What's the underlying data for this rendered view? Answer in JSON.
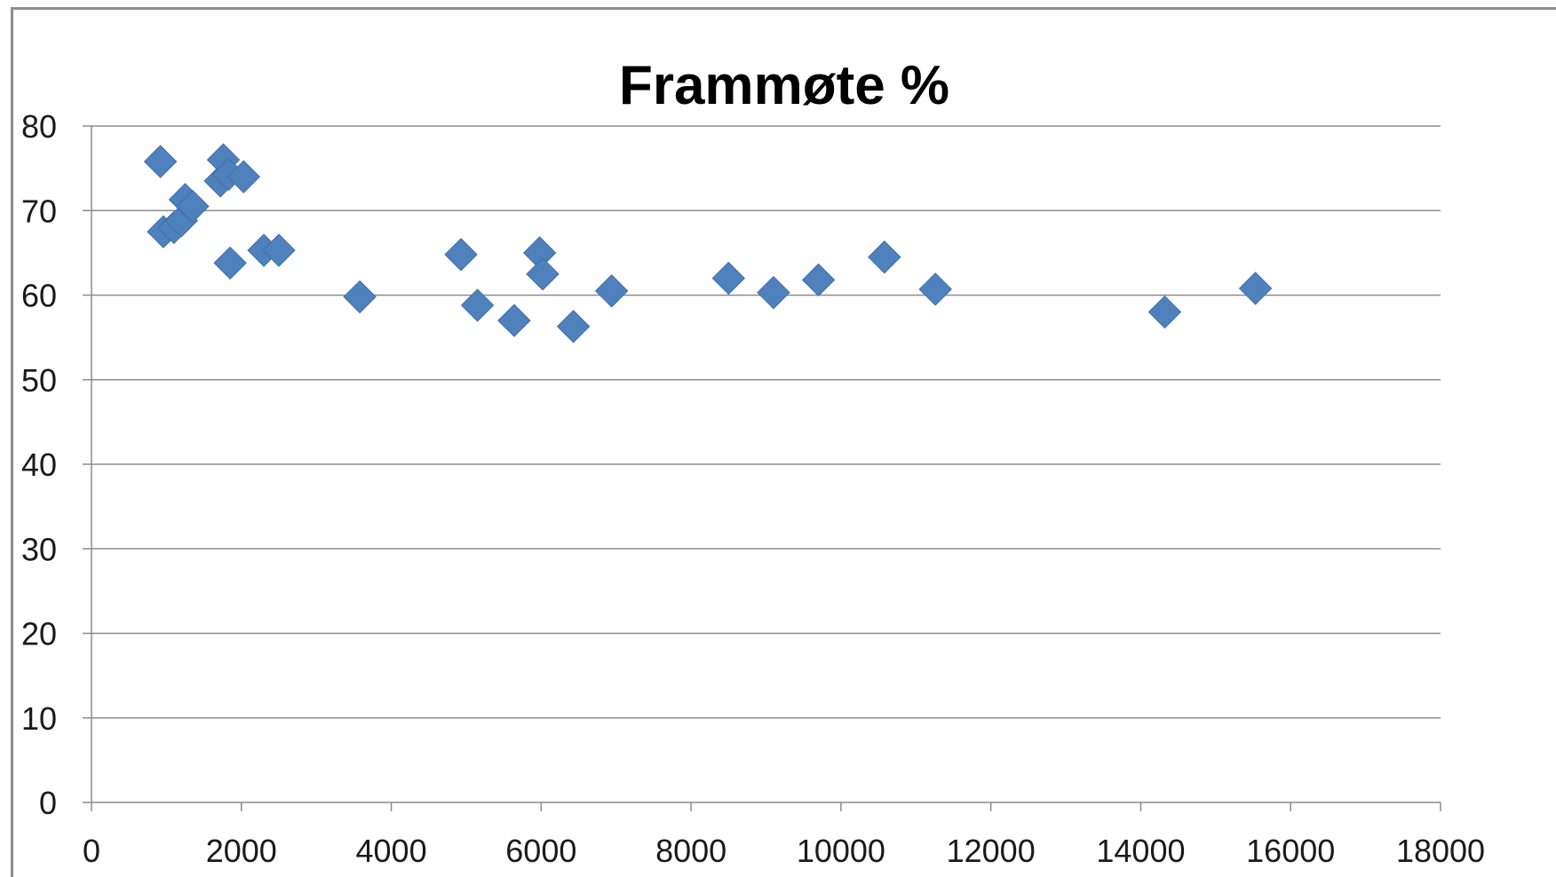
{
  "chart_data": {
    "type": "scatter",
    "title": "Frammøte %",
    "xlabel": "",
    "ylabel": "",
    "xlim": [
      0,
      18000
    ],
    "ylim": [
      0,
      80
    ],
    "x_ticks": [
      "0",
      "2000",
      "4000",
      "6000",
      "8000",
      "10000",
      "12000",
      "14000",
      "16000",
      "18000"
    ],
    "y_ticks": [
      "0",
      "10",
      "20",
      "30",
      "40",
      "50",
      "60",
      "70",
      "80"
    ],
    "grid": "horizontal",
    "legend": "none",
    "marker": "diamond",
    "color": "#4f81bd",
    "points": [
      {
        "x": 920,
        "y": 75.8
      },
      {
        "x": 960,
        "y": 67.5
      },
      {
        "x": 1100,
        "y": 68.0
      },
      {
        "x": 1200,
        "y": 68.8
      },
      {
        "x": 1250,
        "y": 71.3
      },
      {
        "x": 1350,
        "y": 70.5
      },
      {
        "x": 1720,
        "y": 73.5
      },
      {
        "x": 1760,
        "y": 76.0
      },
      {
        "x": 1830,
        "y": 74.3
      },
      {
        "x": 1850,
        "y": 63.8
      },
      {
        "x": 2030,
        "y": 74.0
      },
      {
        "x": 2300,
        "y": 65.3
      },
      {
        "x": 2500,
        "y": 65.3
      },
      {
        "x": 3580,
        "y": 59.8
      },
      {
        "x": 4930,
        "y": 64.8
      },
      {
        "x": 5150,
        "y": 58.8
      },
      {
        "x": 5640,
        "y": 57.0
      },
      {
        "x": 5980,
        "y": 65.0
      },
      {
        "x": 6020,
        "y": 62.5
      },
      {
        "x": 6430,
        "y": 56.3
      },
      {
        "x": 6940,
        "y": 60.5
      },
      {
        "x": 8500,
        "y": 62.0
      },
      {
        "x": 9100,
        "y": 60.3
      },
      {
        "x": 9700,
        "y": 61.8
      },
      {
        "x": 10580,
        "y": 64.5
      },
      {
        "x": 11260,
        "y": 60.7
      },
      {
        "x": 14320,
        "y": 58.0
      },
      {
        "x": 15530,
        "y": 60.8
      }
    ]
  }
}
